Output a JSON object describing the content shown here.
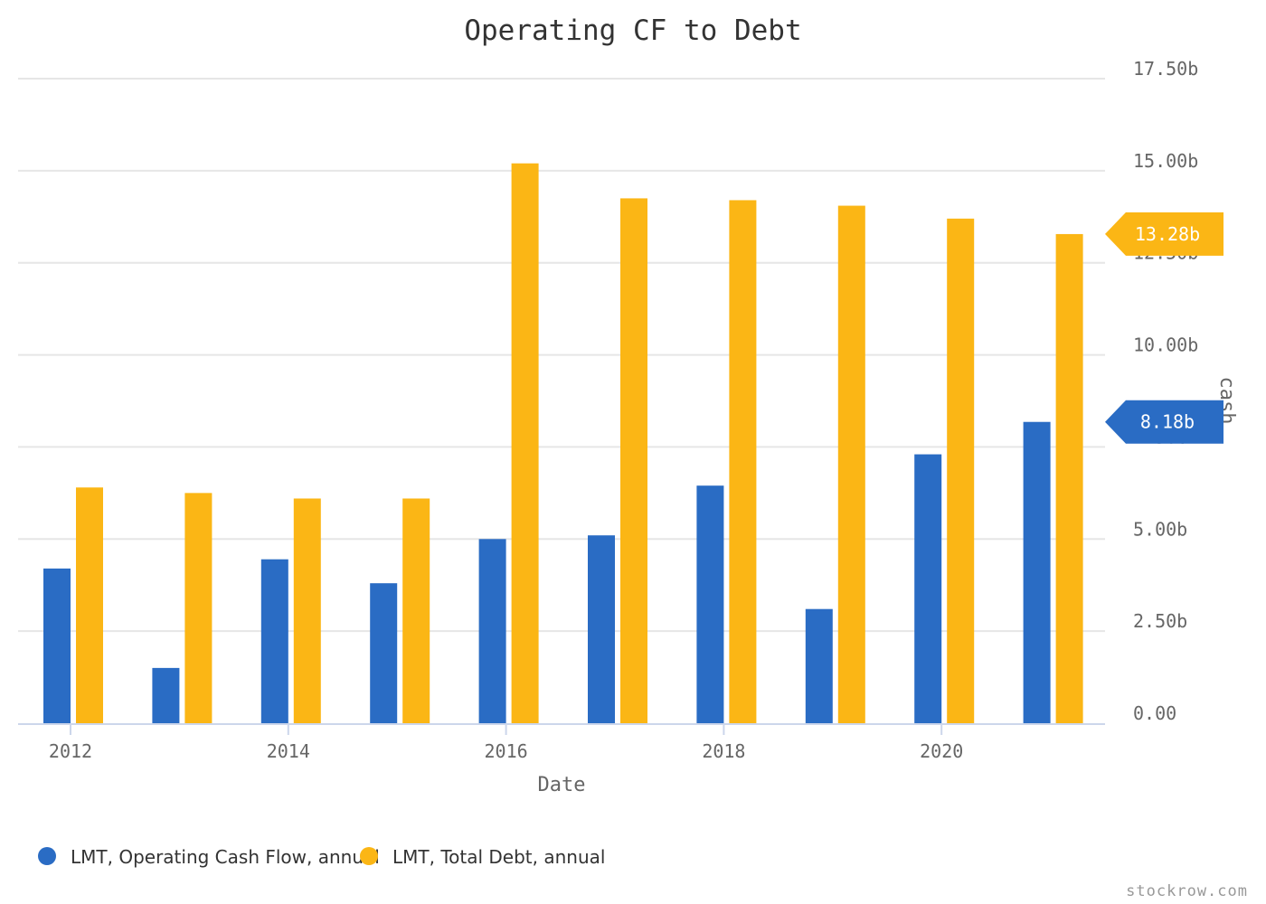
{
  "chart_data": {
    "type": "bar",
    "title": "Operating CF to Debt",
    "xlabel": "Date",
    "ylabel": "cash",
    "x_tick_labels": [
      "2012",
      "2014",
      "2016",
      "2018",
      "2020"
    ],
    "categories": [
      "2012",
      "2013",
      "2014",
      "2015",
      "2016",
      "2017",
      "2018",
      "2019",
      "2020",
      "2021"
    ],
    "series": [
      {
        "name": "LMT, Operating Cash Flow, annual",
        "color": "#2a6cc4",
        "values": [
          4.2,
          1.5,
          4.45,
          3.8,
          5.0,
          5.1,
          6.45,
          3.1,
          7.3,
          8.18
        ]
      },
      {
        "name": "LMT, Total Debt, annual",
        "color": "#fbb615",
        "values": [
          6.4,
          6.25,
          6.1,
          6.1,
          15.2,
          14.25,
          14.2,
          14.05,
          13.7,
          13.28
        ]
      }
    ],
    "y_tick_labels": [
      "0.00",
      "2.50b",
      "5.00b",
      "7.50b",
      "10.00b",
      "12.50b",
      "15.00b",
      "17.50b"
    ],
    "ylim": [
      0,
      17.5
    ],
    "grid": true,
    "legend_position": "bottom-left",
    "last_value_badges": [
      {
        "series": "LMT, Total Debt, annual",
        "label": "13.28b",
        "color": "#fbb615"
      },
      {
        "series": "LMT, Operating Cash Flow, annual",
        "label": "8.18b",
        "color": "#2a6cc4"
      }
    ]
  },
  "credit": "stockrow.com"
}
